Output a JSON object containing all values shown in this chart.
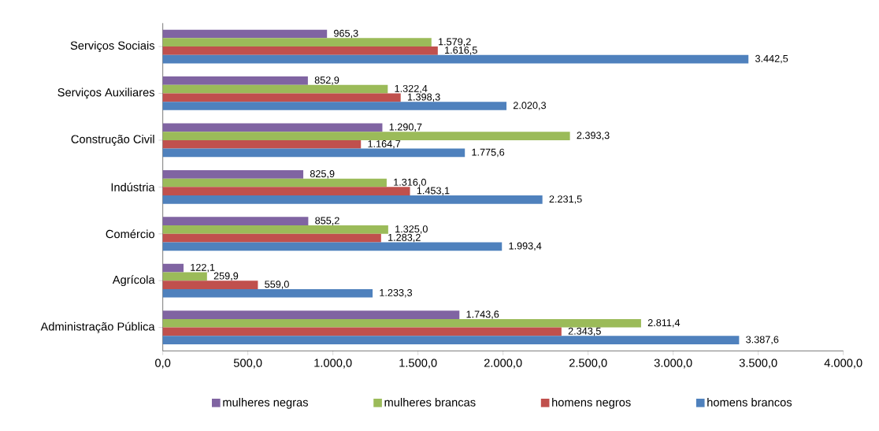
{
  "chart_data": {
    "type": "bar",
    "orientation": "horizontal",
    "categories": [
      "Serviços Sociais",
      "Serviços Auxiliares",
      "Construção Civil",
      "Indústria",
      "Comércio",
      "Agrícola",
      "Administração Pública"
    ],
    "series": [
      {
        "name": "mulheres negras",
        "color": "#8064a2",
        "values": [
          965.3,
          852.9,
          1290.7,
          825.9,
          855.2,
          122.1,
          1743.6
        ],
        "value_labels": [
          "965,3",
          "852,9",
          "1.290,7",
          "825,9",
          "855,2",
          "122,1",
          "1.743,6"
        ]
      },
      {
        "name": "mulheres brancas",
        "color": "#9bbb59",
        "values": [
          1579.2,
          1322.4,
          2393.3,
          1316.0,
          1325.0,
          259.9,
          2811.4
        ],
        "value_labels": [
          "1.579,2",
          "1.322,4",
          "2.393,3",
          "1.316,0",
          "1.325,0",
          "259,9",
          "2.811,4"
        ]
      },
      {
        "name": "homens negros",
        "color": "#c0504d",
        "values": [
          1616.5,
          1398.3,
          1164.7,
          1453.1,
          1283.2,
          559.0,
          2343.5
        ],
        "value_labels": [
          "1.616,5",
          "1.398,3",
          "1.164,7",
          "1.453,1",
          "1.283,2",
          "559,0",
          "2.343,5"
        ]
      },
      {
        "name": "homens brancos",
        "color": "#4f81bd",
        "values": [
          3442.5,
          2020.3,
          1775.6,
          2231.5,
          1993.4,
          1233.3,
          3387.6
        ],
        "value_labels": [
          "3.442,5",
          "2.020,3",
          "1.775,6",
          "2.231,5",
          "1.993,4",
          "1.233,3",
          "3.387,6"
        ]
      }
    ],
    "xlim": [
      0,
      4000
    ],
    "xticks": [
      {
        "value": 0,
        "label": "0,0"
      },
      {
        "value": 500,
        "label": "500,0"
      },
      {
        "value": 1000,
        "label": "1.000,0"
      },
      {
        "value": 1500,
        "label": "1.500,0"
      },
      {
        "value": 2000,
        "label": "2.000,0"
      },
      {
        "value": 2500,
        "label": "2.500,0"
      },
      {
        "value": 3000,
        "label": "3.000,0"
      },
      {
        "value": 3500,
        "label": "3.500,0"
      },
      {
        "value": 4000,
        "label": "4.000,0"
      }
    ],
    "grid": false,
    "legend": "bottom"
  }
}
